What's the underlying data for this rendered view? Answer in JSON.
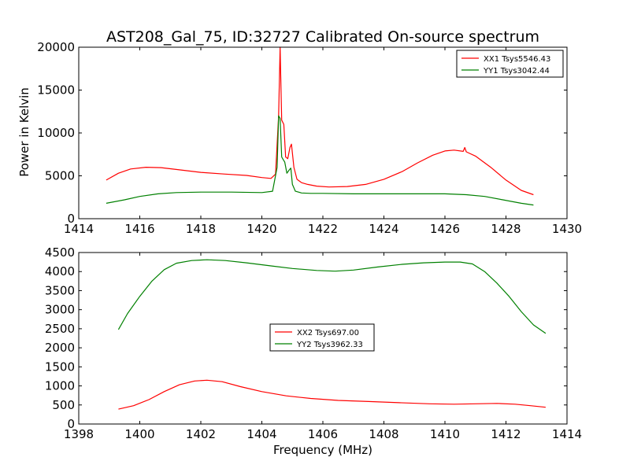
{
  "chart_data": [
    {
      "type": "line",
      "title": "AST208_Gal_75, ID:32727 Calibrated On-source spectrum",
      "xlabel": "",
      "ylabel": "Power in Kelvin",
      "xlim": [
        1414,
        1430
      ],
      "ylim": [
        0,
        20000
      ],
      "xticks": [
        1414,
        1416,
        1418,
        1420,
        1422,
        1424,
        1426,
        1428,
        1430
      ],
      "yticks": [
        0,
        5000,
        10000,
        15000,
        20000
      ],
      "grid": false,
      "legend_position": "top-right",
      "series": [
        {
          "name": "XX1 Tsys5546.43",
          "color": "#ff0000",
          "x": [
            1414.9,
            1415.3,
            1415.7,
            1416.2,
            1416.7,
            1417.3,
            1418.0,
            1418.8,
            1419.5,
            1420.0,
            1420.3,
            1420.45,
            1420.55,
            1420.6,
            1420.65,
            1420.72,
            1420.78,
            1420.85,
            1420.92,
            1420.97,
            1421.05,
            1421.15,
            1421.3,
            1421.5,
            1421.8,
            1422.2,
            1422.8,
            1423.4,
            1424.0,
            1424.6,
            1425.1,
            1425.6,
            1426.0,
            1426.3,
            1426.6,
            1426.65,
            1426.7,
            1427.0,
            1427.5,
            1428.0,
            1428.5,
            1428.9
          ],
          "y": [
            4500,
            5300,
            5800,
            6000,
            5950,
            5700,
            5400,
            5200,
            5050,
            4800,
            4700,
            5200,
            12000,
            20000,
            11500,
            11000,
            7200,
            7000,
            8300,
            8700,
            6000,
            4600,
            4200,
            4000,
            3800,
            3700,
            3750,
            4000,
            4600,
            5500,
            6500,
            7400,
            7900,
            8000,
            7850,
            8300,
            7800,
            7300,
            6000,
            4500,
            3300,
            2800
          ]
        },
        {
          "name": "YY1 Tsys3042.44",
          "color": "#008000",
          "x": [
            1414.9,
            1415.5,
            1416.0,
            1416.6,
            1417.2,
            1418.0,
            1419.0,
            1420.0,
            1420.35,
            1420.5,
            1420.55,
            1420.6,
            1420.65,
            1420.7,
            1420.75,
            1420.82,
            1420.9,
            1420.95,
            1421.0,
            1421.1,
            1421.3,
            1421.6,
            1422.0,
            1423.0,
            1424.0,
            1425.0,
            1426.0,
            1426.7,
            1427.3,
            1427.9,
            1428.5,
            1428.9
          ],
          "y": [
            1800,
            2200,
            2600,
            2900,
            3050,
            3100,
            3100,
            3050,
            3200,
            6000,
            12000,
            11700,
            7200,
            6900,
            6600,
            5300,
            5700,
            5900,
            4000,
            3200,
            3000,
            2950,
            2950,
            2900,
            2900,
            2900,
            2900,
            2800,
            2600,
            2200,
            1800,
            1600
          ]
        }
      ]
    },
    {
      "type": "line",
      "title": "",
      "xlabel": "Frequency (MHz)",
      "ylabel": "",
      "xlim": [
        1398,
        1414
      ],
      "ylim": [
        0,
        4500
      ],
      "xticks": [
        1398,
        1400,
        1402,
        1404,
        1406,
        1408,
        1410,
        1412,
        1414
      ],
      "yticks": [
        0,
        500,
        1000,
        1500,
        2000,
        2500,
        3000,
        3500,
        4000,
        4500
      ],
      "grid": false,
      "legend_position": "center",
      "series": [
        {
          "name": "XX2 Tsys697.00",
          "color": "#ff0000",
          "x": [
            1399.3,
            1399.8,
            1400.3,
            1400.8,
            1401.3,
            1401.8,
            1402.2,
            1402.7,
            1403.3,
            1404.0,
            1404.8,
            1405.6,
            1406.5,
            1407.5,
            1408.5,
            1409.5,
            1410.3,
            1411.0,
            1411.7,
            1412.3,
            1412.8,
            1413.3
          ],
          "y": [
            390,
            480,
            640,
            850,
            1030,
            1130,
            1150,
            1110,
            980,
            850,
            740,
            670,
            620,
            590,
            560,
            530,
            520,
            530,
            540,
            520,
            480,
            440
          ]
        },
        {
          "name": "YY2 Tsys3962.33",
          "color": "#008000",
          "x": [
            1399.3,
            1399.6,
            1400.0,
            1400.4,
            1400.8,
            1401.2,
            1401.7,
            1402.2,
            1402.8,
            1403.5,
            1404.3,
            1405.0,
            1405.8,
            1406.4,
            1407.0,
            1407.8,
            1408.6,
            1409.3,
            1410.0,
            1410.5,
            1410.9,
            1411.3,
            1411.7,
            1412.1,
            1412.5,
            1412.9,
            1413.3
          ],
          "y": [
            2480,
            2900,
            3350,
            3750,
            4050,
            4220,
            4290,
            4310,
            4290,
            4230,
            4150,
            4080,
            4030,
            4010,
            4040,
            4120,
            4190,
            4230,
            4250,
            4250,
            4200,
            4000,
            3700,
            3350,
            2950,
            2600,
            2380
          ]
        }
      ]
    }
  ]
}
